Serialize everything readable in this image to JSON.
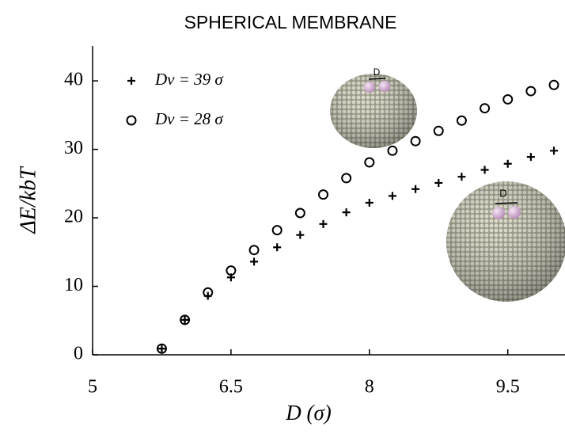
{
  "chart_data": {
    "type": "scatter",
    "title": "SPHERICAL MEMBRANE",
    "x_label": "D (σ)",
    "y_label": "ΔE/kbT",
    "x": [
      5.75,
      6.0,
      6.25,
      6.5,
      6.75,
      7.0,
      7.25,
      7.5,
      7.75,
      8.0,
      8.25,
      8.5,
      8.75,
      9.0,
      9.25,
      9.5,
      9.75,
      10.0
    ],
    "series": [
      {
        "name": "Dv = 39 σ",
        "marker": "plus",
        "color": "#000000",
        "values": [
          0.9,
          5.1,
          8.6,
          11.3,
          13.6,
          15.7,
          17.5,
          19.1,
          20.8,
          22.2,
          23.2,
          24.2,
          25.1,
          26.0,
          27.0,
          27.9,
          28.9,
          29.8
        ]
      },
      {
        "name": "Dv = 28 σ",
        "marker": "circle",
        "color": "#000000",
        "values": [
          0.9,
          5.1,
          9.1,
          12.3,
          15.3,
          18.2,
          20.7,
          23.4,
          25.8,
          28.1,
          29.8,
          31.2,
          32.7,
          34.2,
          36.0,
          37.3,
          38.5,
          39.4
        ]
      }
    ],
    "xlim": [
      5,
      10.12
    ],
    "xticks": [
      5,
      6.5,
      8,
      9.5
    ],
    "ylim": [
      0,
      45.1
    ],
    "yticks": [
      0,
      10,
      20,
      30,
      40
    ],
    "legend": "upper left",
    "annotations": [
      "D",
      "D"
    ]
  }
}
